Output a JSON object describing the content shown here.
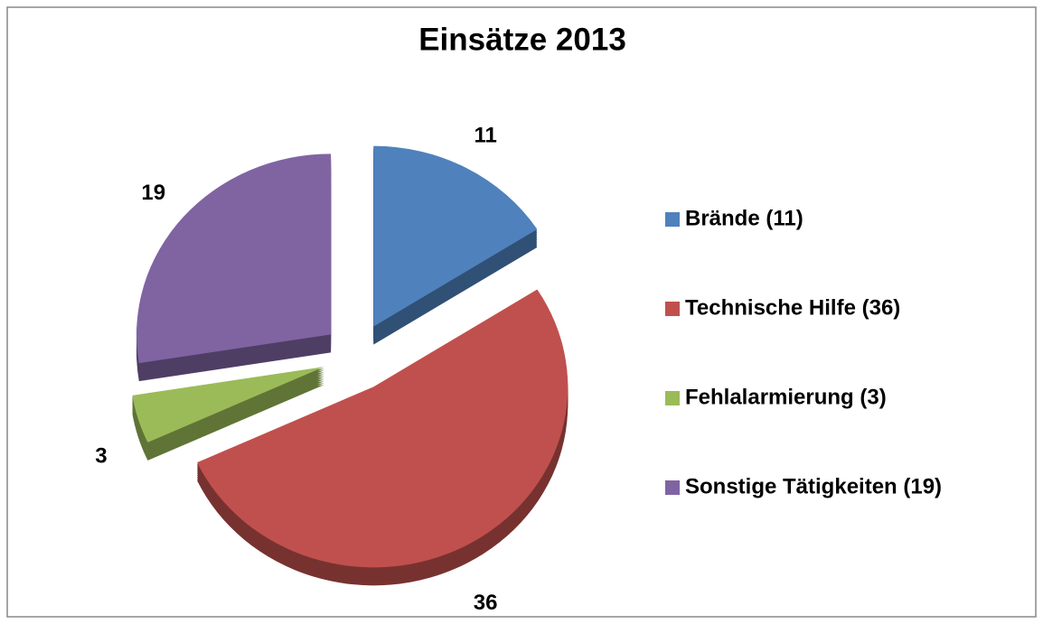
{
  "chart_data": {
    "type": "pie",
    "title": "Einsätze 2013",
    "categories": [
      "Brände (11)",
      "Technische Hilfe (36)",
      "Fehlalarmierung (3)",
      "Sonstige Tätigkeiten (19)"
    ],
    "values": [
      11,
      36,
      3,
      19
    ],
    "colors": [
      "#4f81bd",
      "#c0504d",
      "#9bbb59",
      "#8064a2"
    ],
    "legend": "right"
  }
}
